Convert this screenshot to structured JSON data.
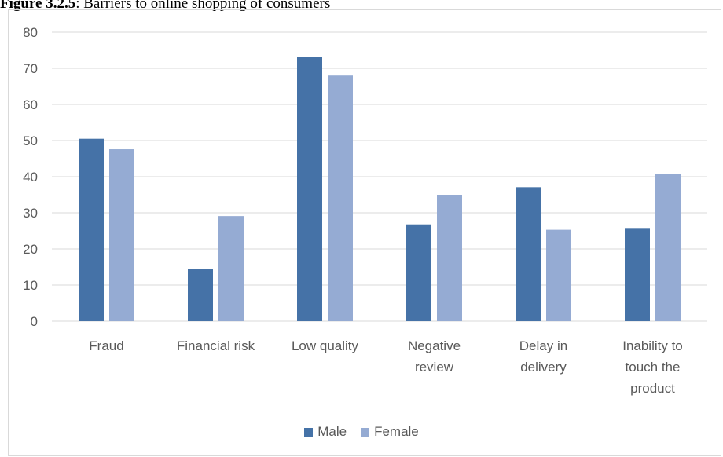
{
  "caption": {
    "label": "Figure 3.2.5",
    "text": ": Barriers to online shopping of consumers"
  },
  "colors": {
    "male": "#4572a7",
    "female": "#95abd3",
    "grid": "#d9d9d9",
    "text": "#595959"
  },
  "chart_data": {
    "type": "bar",
    "title": "",
    "xlabel": "",
    "ylabel": "",
    "ylim": [
      0,
      80
    ],
    "yticks": [
      "0",
      "10",
      "20",
      "30",
      "40",
      "50",
      "60",
      "70",
      "80"
    ],
    "categories": [
      "Fraud",
      "Financial risk",
      "Low quality",
      "Negative review",
      "Delay in delivery",
      "Inability to touch the product"
    ],
    "category_lines": [
      [
        "Fraud"
      ],
      [
        "Financial risk"
      ],
      [
        "Low quality"
      ],
      [
        "Negative",
        "review"
      ],
      [
        "Delay in",
        "delivery"
      ],
      [
        "Inability to",
        "touch the",
        "product"
      ]
    ],
    "series": [
      {
        "name": "Male",
        "values": [
          50.5,
          14.5,
          73.2,
          26.8,
          37.1,
          25.8
        ]
      },
      {
        "name": "Female",
        "values": [
          47.6,
          29.1,
          68.0,
          35.0,
          25.3,
          40.8
        ]
      }
    ],
    "grid": true,
    "legend": "bottom"
  }
}
